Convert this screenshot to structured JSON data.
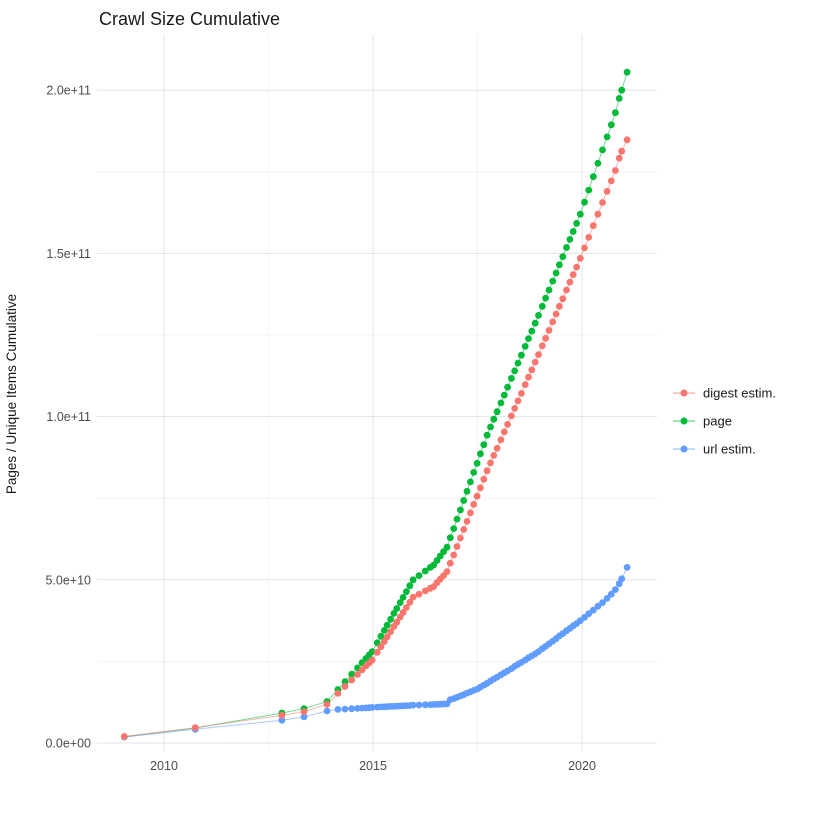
{
  "title": "Crawl Size Cumulative",
  "y_axis": {
    "label": "Pages / Unique Items Cumulative",
    "tick_labels": [
      "0.0e+00",
      "5.0e+10",
      "1.0e+11",
      "1.5e+11",
      "2.0e+11"
    ],
    "tick_values_billions": [
      0,
      50,
      100,
      150,
      200
    ],
    "minor_tick_values_billions": [
      25,
      75,
      125,
      175
    ]
  },
  "x_axis": {
    "tick_labels": [
      "2010",
      "2015",
      "2020"
    ],
    "tick_values": [
      2010,
      2015,
      2020
    ],
    "minor_tick_values": [
      2012.5,
      2017.5
    ]
  },
  "legend": {
    "position": "right",
    "items": [
      {
        "label": "digest estim.",
        "color": "#F8766D"
      },
      {
        "label": "page",
        "color": "#00BA38"
      },
      {
        "label": "url estim.",
        "color": "#619CFF"
      }
    ]
  },
  "colors": {
    "digest": "#F8766D",
    "page": "#00BA38",
    "url": "#619CFF",
    "grid_major": "#e4e4e4",
    "grid_minor": "#f2f2f2",
    "tick_text": "#4d4d4d",
    "title_text": "#1a1a1a"
  },
  "chart_data": {
    "type": "line",
    "title": "Crawl Size Cumulative",
    "xlabel": "",
    "ylabel": "Pages / Unique Items Cumulative",
    "x_unit": "year (decimal)",
    "values_unit": "billions of pages/items (1e9)",
    "xlim": [
      2008.4,
      2021.8
    ],
    "ylim_billions": [
      -3,
      217
    ],
    "grid": true,
    "legend_position": "right",
    "x": [
      2009.05,
      2010.75,
      2012.82,
      2013.35,
      2013.9,
      2014.16,
      2014.33,
      2014.49,
      2014.63,
      2014.74,
      2014.83,
      2014.91,
      2014.98,
      2015.1,
      2015.19,
      2015.27,
      2015.34,
      2015.42,
      2015.5,
      2015.57,
      2015.65,
      2015.72,
      2015.8,
      2015.88,
      2015.96,
      2016.1,
      2016.25,
      2016.37,
      2016.45,
      2016.53,
      2016.61,
      2016.69,
      2016.77,
      2016.85,
      2016.93,
      2017.01,
      2017.09,
      2017.17,
      2017.25,
      2017.33,
      2017.41,
      2017.49,
      2017.57,
      2017.65,
      2017.73,
      2017.81,
      2017.89,
      2017.97,
      2018.06,
      2018.14,
      2018.22,
      2018.31,
      2018.39,
      2018.47,
      2018.55,
      2018.64,
      2018.72,
      2018.8,
      2018.88,
      2018.96,
      2019.05,
      2019.13,
      2019.21,
      2019.3,
      2019.38,
      2019.46,
      2019.54,
      2019.63,
      2019.71,
      2019.79,
      2019.87,
      2019.96,
      2020.06,
      2020.16,
      2020.27,
      2020.38,
      2020.49,
      2020.6,
      2020.7,
      2020.8,
      2020.89,
      2020.95,
      2021.08
    ],
    "series": [
      {
        "name": "digest estim.",
        "color": "#F8766D",
        "values": [
          2.0,
          4.7,
          8.5,
          9.6,
          11.9,
          15.2,
          17.3,
          19.3,
          21.0,
          22.4,
          23.6,
          24.5,
          25.4,
          27.8,
          29.5,
          31.1,
          32.5,
          34.1,
          35.7,
          37.0,
          38.6,
          40.0,
          41.5,
          43.1,
          44.7,
          45.6,
          46.6,
          47.4,
          47.9,
          49.1,
          50.2,
          51.3,
          52.5,
          55.1,
          57.6,
          60.2,
          62.8,
          65.4,
          67.9,
          70.5,
          73.1,
          75.6,
          78.2,
          80.8,
          83.4,
          85.8,
          88.1,
          90.3,
          92.9,
          95.3,
          97.6,
          100.2,
          102.5,
          104.8,
          107.1,
          109.8,
          112.1,
          114.3,
          116.7,
          119.0,
          121.7,
          124.0,
          126.4,
          129.0,
          131.4,
          133.8,
          136.1,
          138.8,
          141.2,
          143.5,
          145.8,
          148.5,
          151.7,
          154.9,
          158.5,
          162.0,
          165.6,
          169.0,
          172.2,
          175.4,
          179.2,
          181.3,
          184.8
        ]
      },
      {
        "name": "page",
        "color": "#00BA38",
        "values": [
          1.9,
          4.6,
          9.2,
          10.5,
          12.7,
          16.4,
          18.8,
          21.1,
          23.0,
          24.6,
          25.9,
          27.0,
          28.0,
          30.7,
          32.7,
          34.5,
          36.1,
          37.9,
          39.7,
          41.2,
          43.0,
          44.6,
          46.4,
          48.2,
          50.0,
          51.3,
          52.7,
          53.8,
          54.5,
          55.9,
          57.3,
          58.6,
          60.0,
          62.9,
          65.7,
          68.6,
          71.4,
          74.3,
          77.1,
          80.0,
          82.9,
          85.7,
          88.6,
          91.4,
          94.3,
          96.8,
          99.2,
          101.5,
          104.2,
          106.6,
          109.0,
          111.7,
          114.0,
          116.4,
          118.8,
          121.5,
          123.9,
          126.2,
          128.6,
          131.0,
          133.8,
          136.3,
          138.8,
          141.5,
          144.0,
          146.5,
          149.0,
          151.8,
          154.3,
          156.7,
          159.2,
          162.0,
          165.7,
          169.4,
          173.5,
          177.6,
          181.7,
          185.7,
          189.4,
          193.1,
          197.5,
          200.0,
          205.5
        ]
      },
      {
        "name": "url estim.",
        "color": "#619CFF",
        "values": [
          1.85,
          4.2,
          7.0,
          8.0,
          9.8,
          10.3,
          10.4,
          10.5,
          10.6,
          10.7,
          10.75,
          10.8,
          10.9,
          11.0,
          11.05,
          11.1,
          11.15,
          11.2,
          11.25,
          11.3,
          11.35,
          11.4,
          11.45,
          11.5,
          11.6,
          11.65,
          11.7,
          11.75,
          11.8,
          11.85,
          11.9,
          11.95,
          12.0,
          13.3,
          13.6,
          14.0,
          14.4,
          14.8,
          15.3,
          15.7,
          16.1,
          16.5,
          17.1,
          17.7,
          18.3,
          19.0,
          19.6,
          20.2,
          20.9,
          21.5,
          22.1,
          22.8,
          23.5,
          24.1,
          24.7,
          25.4,
          26.1,
          26.7,
          27.3,
          28.0,
          28.9,
          29.6,
          30.4,
          31.2,
          32.0,
          32.8,
          33.5,
          34.4,
          35.1,
          35.9,
          36.6,
          37.5,
          38.5,
          39.6,
          40.7,
          41.9,
          43.0,
          44.3,
          45.6,
          47.0,
          48.8,
          50.3,
          53.8
        ]
      }
    ]
  }
}
